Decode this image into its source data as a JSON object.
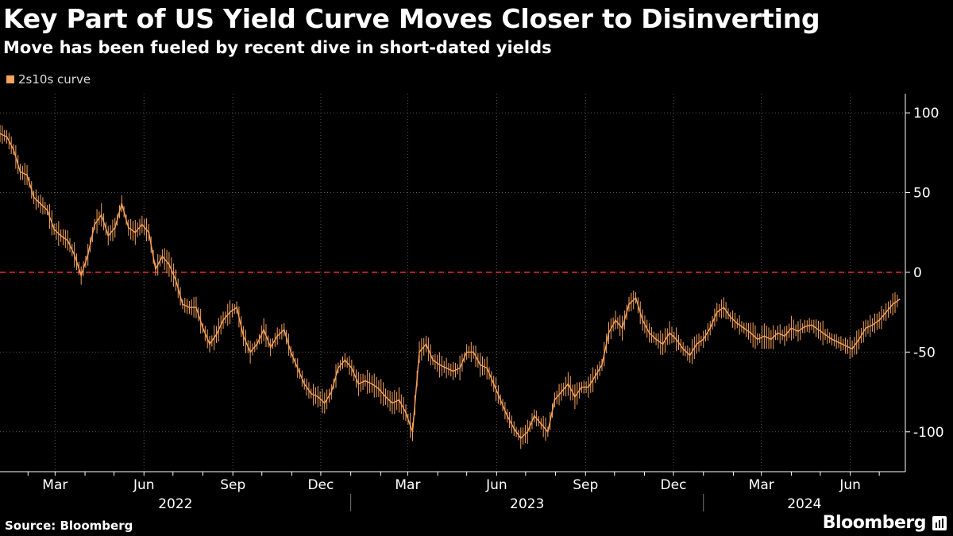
{
  "header": {
    "title": "Key Part of US Yield Curve Moves Closer to Disinverting",
    "subtitle": "Move has been fueled by recent dive in short-dated yields"
  },
  "footer": {
    "source": "Source: Bloomberg",
    "brand": "Bloomberg",
    "brand_icon": "bloomberg-terminal-icon"
  },
  "colors": {
    "background": "#000000",
    "series": "#f7a35c",
    "reference_line": "#e0262d",
    "grid": "#555555",
    "axis_text": "#ffffff"
  },
  "chart_data": {
    "type": "line",
    "title": "Key Part of US Yield Curve Moves Closer to Disinverting",
    "subtitle": "Move has been fueled by recent dive in short-dated yields",
    "legend": {
      "placement": "top-left",
      "entries": [
        "2s10s curve"
      ]
    },
    "series": [
      {
        "name": "2s10s curve",
        "color": "#f7a35c",
        "points": [
          [
            "2022-01-03",
            87
          ],
          [
            "2022-01-10",
            85
          ],
          [
            "2022-01-17",
            77
          ],
          [
            "2022-01-24",
            63
          ],
          [
            "2022-01-31",
            61
          ],
          [
            "2022-02-07",
            47
          ],
          [
            "2022-02-14",
            43
          ],
          [
            "2022-02-21",
            39
          ],
          [
            "2022-02-28",
            27
          ],
          [
            "2022-03-07",
            23
          ],
          [
            "2022-03-14",
            20
          ],
          [
            "2022-03-21",
            11
          ],
          [
            "2022-03-28",
            -2
          ],
          [
            "2022-04-04",
            11
          ],
          [
            "2022-04-11",
            30
          ],
          [
            "2022-04-18",
            36
          ],
          [
            "2022-04-25",
            23
          ],
          [
            "2022-05-02",
            28
          ],
          [
            "2022-05-09",
            43
          ],
          [
            "2022-05-16",
            28
          ],
          [
            "2022-05-23",
            25
          ],
          [
            "2022-05-30",
            30
          ],
          [
            "2022-06-06",
            25
          ],
          [
            "2022-06-13",
            2
          ],
          [
            "2022-06-20",
            10
          ],
          [
            "2022-06-27",
            5
          ],
          [
            "2022-07-04",
            -5
          ],
          [
            "2022-07-11",
            -20
          ],
          [
            "2022-07-18",
            -22
          ],
          [
            "2022-07-25",
            -22
          ],
          [
            "2022-08-01",
            -35
          ],
          [
            "2022-08-08",
            -45
          ],
          [
            "2022-08-15",
            -39
          ],
          [
            "2022-08-22",
            -30
          ],
          [
            "2022-08-29",
            -25
          ],
          [
            "2022-09-05",
            -22
          ],
          [
            "2022-09-12",
            -40
          ],
          [
            "2022-09-19",
            -50
          ],
          [
            "2022-09-26",
            -45
          ],
          [
            "2022-10-03",
            -36
          ],
          [
            "2022-10-10",
            -47
          ],
          [
            "2022-10-17",
            -40
          ],
          [
            "2022-10-24",
            -36
          ],
          [
            "2022-10-31",
            -50
          ],
          [
            "2022-11-07",
            -60
          ],
          [
            "2022-11-14",
            -70
          ],
          [
            "2022-11-21",
            -76
          ],
          [
            "2022-11-28",
            -78
          ],
          [
            "2022-12-05",
            -82
          ],
          [
            "2022-12-12",
            -75
          ],
          [
            "2022-12-19",
            -60
          ],
          [
            "2022-12-26",
            -55
          ],
          [
            "2023-01-02",
            -60
          ],
          [
            "2023-01-09",
            -70
          ],
          [
            "2023-01-16",
            -68
          ],
          [
            "2023-01-23",
            -70
          ],
          [
            "2023-01-30",
            -73
          ],
          [
            "2023-02-06",
            -78
          ],
          [
            "2023-02-13",
            -82
          ],
          [
            "2023-02-20",
            -80
          ],
          [
            "2023-02-27",
            -88
          ],
          [
            "2023-03-06",
            -100
          ],
          [
            "2023-03-13",
            -50
          ],
          [
            "2023-03-20",
            -45
          ],
          [
            "2023-03-27",
            -55
          ],
          [
            "2023-04-03",
            -58
          ],
          [
            "2023-04-10",
            -60
          ],
          [
            "2023-04-17",
            -62
          ],
          [
            "2023-04-24",
            -60
          ],
          [
            "2023-05-01",
            -50
          ],
          [
            "2023-05-08",
            -50
          ],
          [
            "2023-05-15",
            -58
          ],
          [
            "2023-05-22",
            -60
          ],
          [
            "2023-05-29",
            -70
          ],
          [
            "2023-06-05",
            -80
          ],
          [
            "2023-06-12",
            -90
          ],
          [
            "2023-06-19",
            -98
          ],
          [
            "2023-06-26",
            -104
          ],
          [
            "2023-07-03",
            -100
          ],
          [
            "2023-07-10",
            -90
          ],
          [
            "2023-07-17",
            -95
          ],
          [
            "2023-07-24",
            -100
          ],
          [
            "2023-07-31",
            -80
          ],
          [
            "2023-08-07",
            -75
          ],
          [
            "2023-08-14",
            -70
          ],
          [
            "2023-08-21",
            -78
          ],
          [
            "2023-08-28",
            -72
          ],
          [
            "2023-09-04",
            -72
          ],
          [
            "2023-09-11",
            -65
          ],
          [
            "2023-09-18",
            -58
          ],
          [
            "2023-09-25",
            -38
          ],
          [
            "2023-10-02",
            -30
          ],
          [
            "2023-10-09",
            -35
          ],
          [
            "2023-10-16",
            -20
          ],
          [
            "2023-10-23",
            -16
          ],
          [
            "2023-10-30",
            -30
          ],
          [
            "2023-11-06",
            -38
          ],
          [
            "2023-11-13",
            -42
          ],
          [
            "2023-11-20",
            -45
          ],
          [
            "2023-11-27",
            -38
          ],
          [
            "2023-12-04",
            -42
          ],
          [
            "2023-12-11",
            -48
          ],
          [
            "2023-12-18",
            -52
          ],
          [
            "2023-12-25",
            -45
          ],
          [
            "2024-01-01",
            -42
          ],
          [
            "2024-01-08",
            -35
          ],
          [
            "2024-01-15",
            -25
          ],
          [
            "2024-01-22",
            -22
          ],
          [
            "2024-01-29",
            -28
          ],
          [
            "2024-02-05",
            -32
          ],
          [
            "2024-02-12",
            -35
          ],
          [
            "2024-02-19",
            -38
          ],
          [
            "2024-02-26",
            -42
          ],
          [
            "2024-03-04",
            -40
          ],
          [
            "2024-03-11",
            -42
          ],
          [
            "2024-03-18",
            -38
          ],
          [
            "2024-03-25",
            -40
          ],
          [
            "2024-04-01",
            -35
          ],
          [
            "2024-04-08",
            -37
          ],
          [
            "2024-04-15",
            -34
          ],
          [
            "2024-04-22",
            -33
          ],
          [
            "2024-04-29",
            -36
          ],
          [
            "2024-05-06",
            -39
          ],
          [
            "2024-05-13",
            -42
          ],
          [
            "2024-05-20",
            -44
          ],
          [
            "2024-05-27",
            -46
          ],
          [
            "2024-06-03",
            -48
          ],
          [
            "2024-06-10",
            -42
          ],
          [
            "2024-06-17",
            -35
          ],
          [
            "2024-06-24",
            -33
          ],
          [
            "2024-07-01",
            -30
          ],
          [
            "2024-07-08",
            -25
          ],
          [
            "2024-07-15",
            -20
          ],
          [
            "2024-07-22",
            -17
          ]
        ]
      }
    ],
    "reference_line": {
      "y": 0,
      "style": "dashed",
      "color": "#e0262d"
    },
    "x_axis": {
      "type": "date",
      "range": [
        "2022-01-03",
        "2024-07-28"
      ],
      "month_ticks": [
        {
          "label": "Mar",
          "date": "2022-03-01"
        },
        {
          "label": "Jun",
          "date": "2022-06-01"
        },
        {
          "label": "Sep",
          "date": "2022-09-01"
        },
        {
          "label": "Dec",
          "date": "2022-12-01"
        },
        {
          "label": "Mar",
          "date": "2023-03-01"
        },
        {
          "label": "Jun",
          "date": "2023-06-01"
        },
        {
          "label": "Sep",
          "date": "2023-09-01"
        },
        {
          "label": "Dec",
          "date": "2023-12-01"
        },
        {
          "label": "Mar",
          "date": "2024-03-01"
        },
        {
          "label": "Jun",
          "date": "2024-06-01"
        }
      ],
      "year_labels": [
        {
          "label": "2022",
          "start": "2022-01-03",
          "end": "2023-01-01"
        },
        {
          "label": "2023",
          "start": "2023-01-01",
          "end": "2024-01-01"
        },
        {
          "label": "2024",
          "start": "2024-01-01",
          "end": "2024-07-28"
        }
      ]
    },
    "y_axis": {
      "position": "right",
      "ylim": [
        -125,
        112
      ],
      "ticks": [
        100,
        50,
        0,
        -50,
        -100
      ],
      "tick_labels": [
        "100",
        "50",
        "0",
        "-50",
        "-100"
      ]
    },
    "grid": {
      "horizontal": true,
      "vertical": true,
      "style": "dotted"
    }
  }
}
